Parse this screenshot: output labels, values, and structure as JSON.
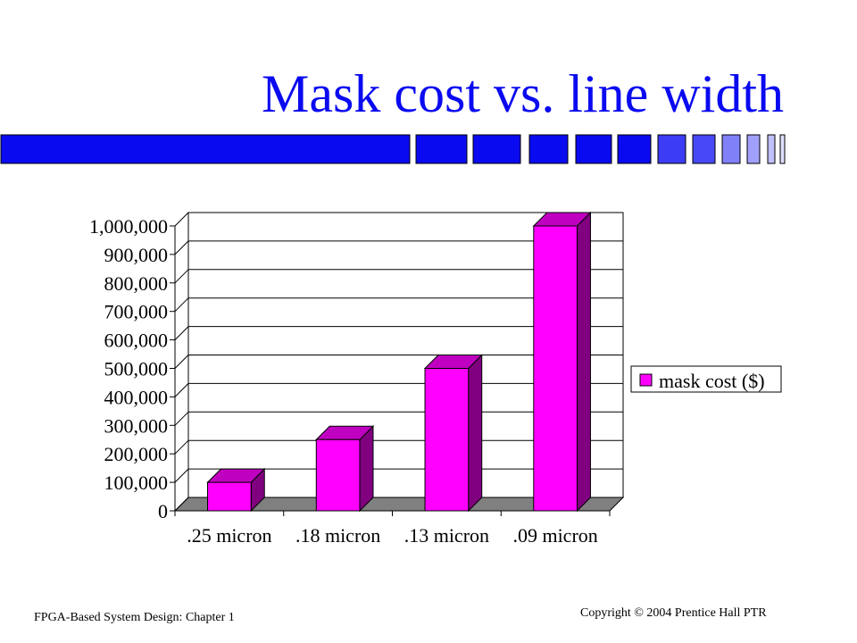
{
  "slide": {
    "title": "Mask cost vs. line width",
    "footer_left": "FPGA-Based System Design: Chapter 1",
    "footer_right": "Copyright © 2004 Prentice Hall PTR"
  },
  "colors": {
    "title": "#0a0af0",
    "bar_front": "#ff00ff",
    "bar_side": "#800080",
    "bar_top": "#c000c0",
    "floor": "#808080"
  },
  "chart_data": {
    "type": "bar",
    "title": "",
    "xlabel": "",
    "ylabel": "",
    "categories": [
      ".25 micron",
      ".18 micron",
      ".13 micron",
      ".09 micron"
    ],
    "series": [
      {
        "name": "mask cost ($)",
        "values": [
          100000,
          250000,
          500000,
          1000000
        ]
      }
    ],
    "ylim": [
      0,
      1000000
    ],
    "yticks": [
      0,
      100000,
      200000,
      300000,
      400000,
      500000,
      600000,
      700000,
      800000,
      900000,
      1000000
    ],
    "ytick_labels": [
      "0",
      "100,000",
      "200,000",
      "300,000",
      "400,000",
      "500,000",
      "600,000",
      "700,000",
      "800,000",
      "900,000",
      "1,000,000"
    ],
    "grid": true,
    "legend": "right",
    "style": "3d"
  }
}
